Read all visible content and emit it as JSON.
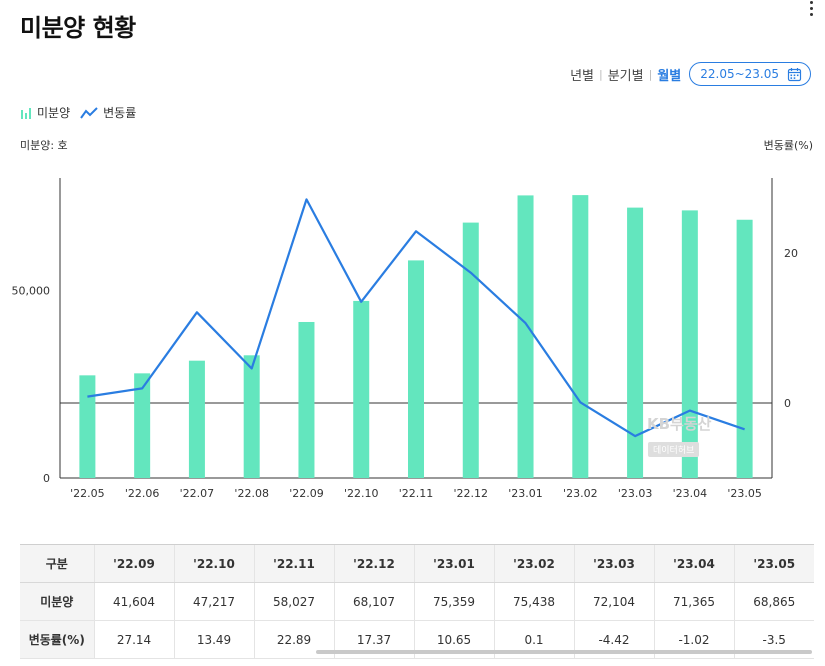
{
  "header": {
    "title": "미분양 현황"
  },
  "period": {
    "options": [
      "년별",
      "분기별",
      "월별"
    ],
    "active_index": 2,
    "date_range": "22.05~23.05"
  },
  "legend": {
    "bar_label": "미분양",
    "line_label": "변동률"
  },
  "axes": {
    "left_caption": "미분양: 호",
    "right_caption": "변동률(%)"
  },
  "watermark": {
    "main": "KB부동산",
    "sub": "데이터허브"
  },
  "colors": {
    "bar": "#63e6be",
    "line": "#2a7de1",
    "accent": "#2a7de1"
  },
  "chart_data": {
    "type": "bar+line",
    "categories": [
      "'22.05",
      "'22.06",
      "'22.07",
      "'22.08",
      "'22.09",
      "'22.10",
      "'22.11",
      "'22.12",
      "'23.01",
      "'23.02",
      "'23.03",
      "'23.04",
      "'23.05"
    ],
    "series": [
      {
        "name": "미분양",
        "type": "bar",
        "axis": "left",
        "values": [
          27375,
          27910,
          31284,
          32722,
          41604,
          47217,
          58027,
          68107,
          75359,
          75438,
          72104,
          71365,
          68865
        ]
      },
      {
        "name": "변동률",
        "type": "line",
        "axis": "right",
        "values": [
          0.86,
          1.95,
          12.09,
          4.6,
          27.14,
          13.49,
          22.89,
          17.37,
          10.65,
          0.1,
          -4.42,
          -1.02,
          -3.5
        ]
      }
    ],
    "y_left": {
      "label": "미분양: 호",
      "ticks": [
        0,
        50000
      ],
      "tick_labels": [
        "0",
        "50,000"
      ],
      "range": [
        0,
        80000
      ]
    },
    "y_right": {
      "label": "변동률(%)",
      "ticks": [
        0,
        20
      ],
      "tick_labels": [
        "0",
        "20"
      ],
      "range": [
        -10,
        30
      ]
    },
    "zero_line": true
  },
  "table": {
    "header_label": "구분",
    "columns": [
      "'22.09",
      "'22.10",
      "'22.11",
      "'22.12",
      "'23.01",
      "'23.02",
      "'23.03",
      "'23.04",
      "'23.05"
    ],
    "rows": [
      {
        "label": "미분양",
        "values": [
          "41,604",
          "47,217",
          "58,027",
          "68,107",
          "75,359",
          "75,438",
          "72,104",
          "71,365",
          "68,865"
        ]
      },
      {
        "label": "변동률(%)",
        "values": [
          "27.14",
          "13.49",
          "22.89",
          "17.37",
          "10.65",
          "0.1",
          "-4.42",
          "-1.02",
          "-3.5"
        ]
      }
    ]
  }
}
